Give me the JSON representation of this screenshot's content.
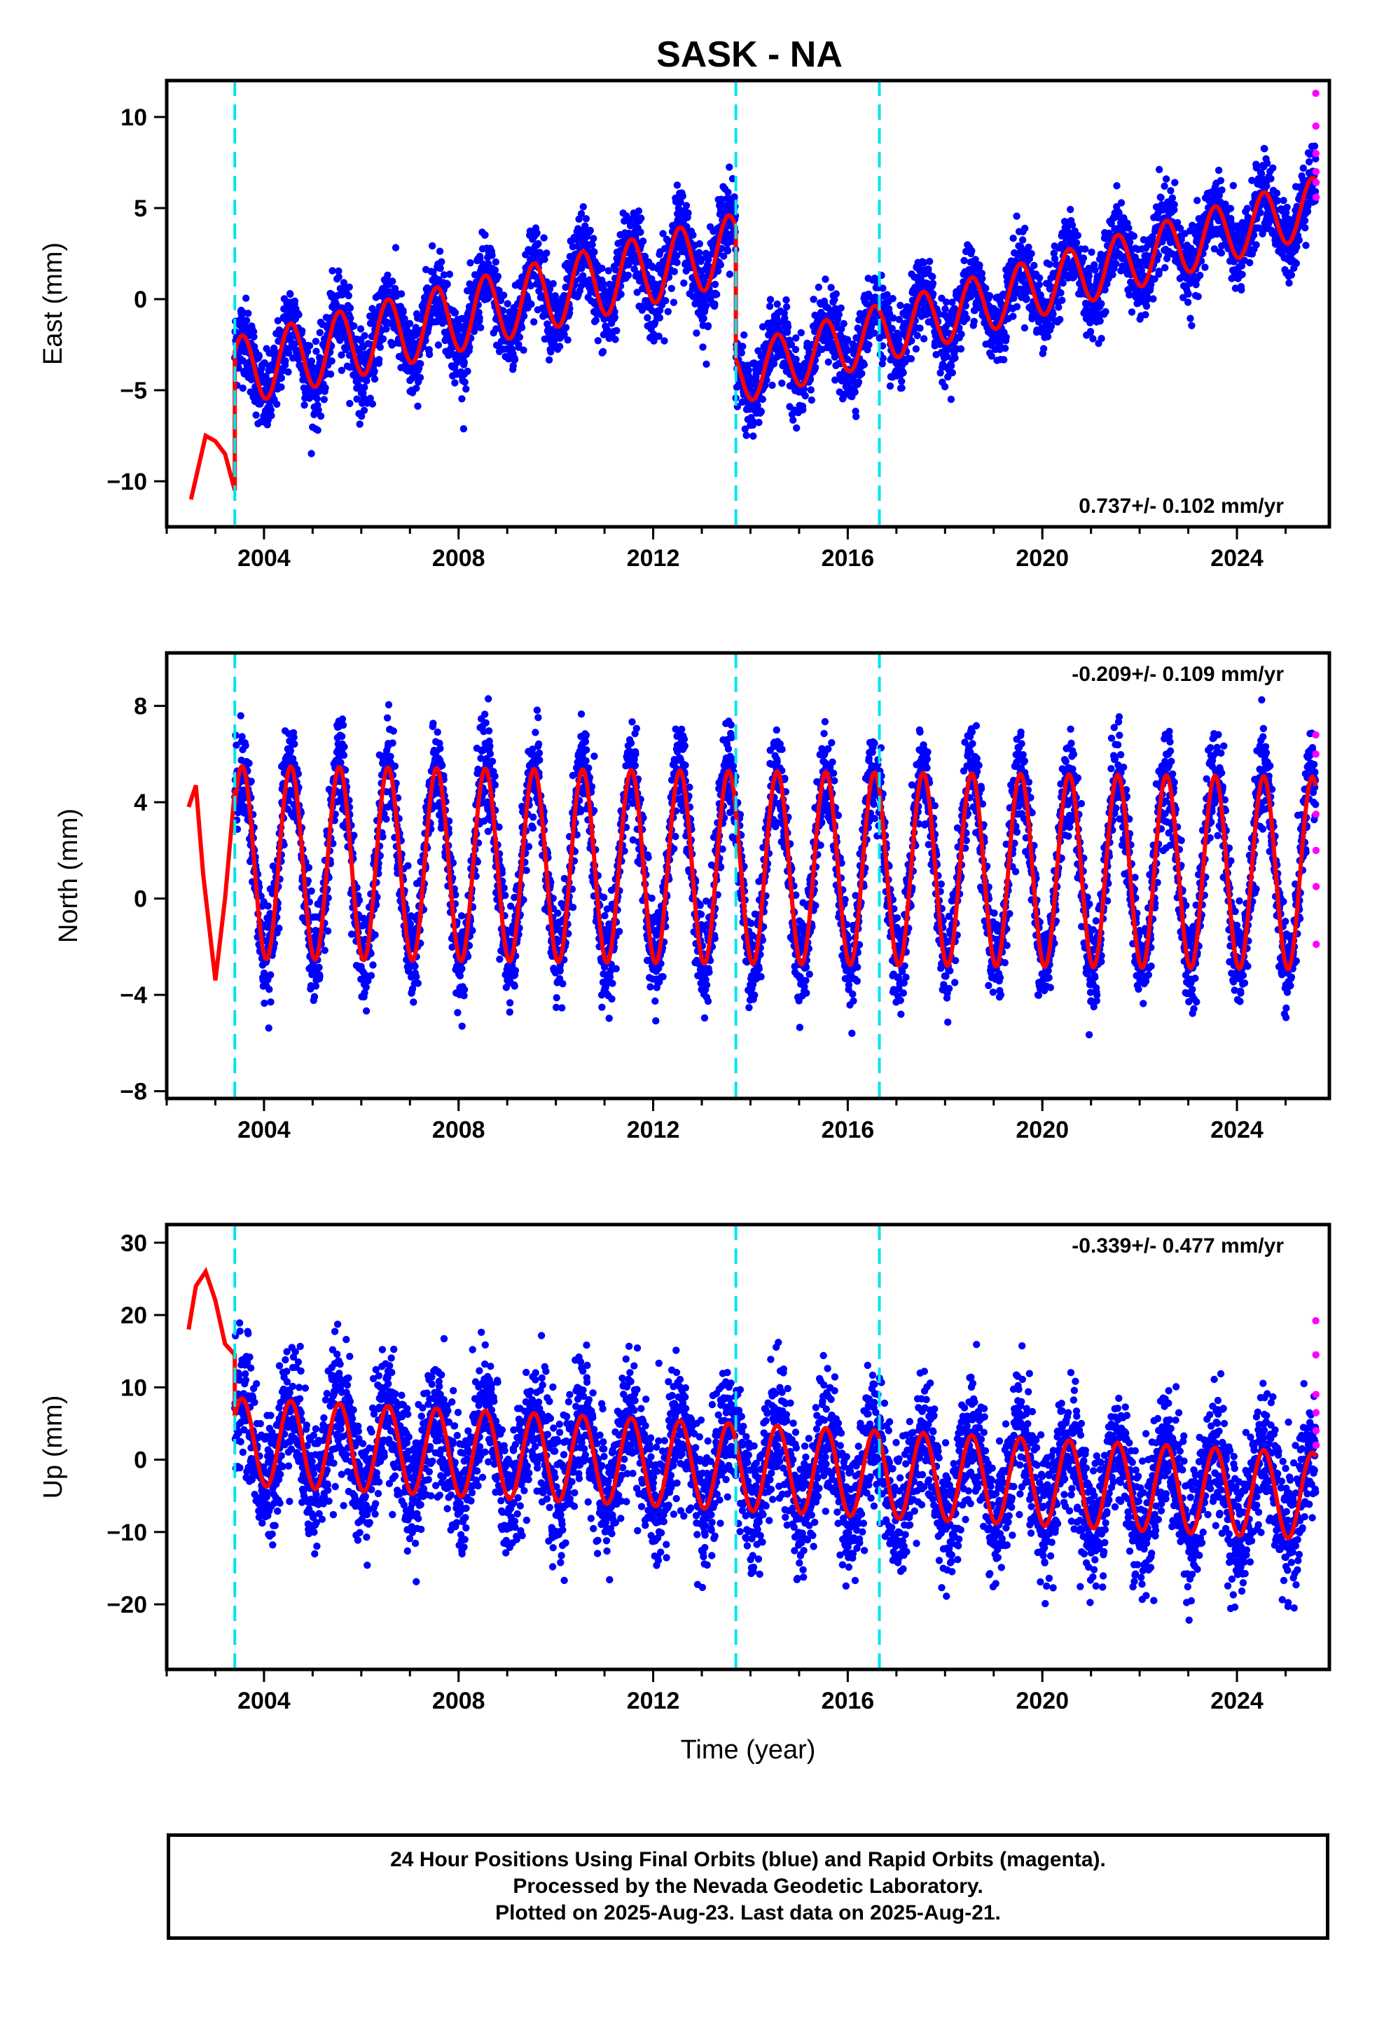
{
  "title": "SASK - NA",
  "xlabel": "Time (year)",
  "footer": {
    "line1": "24 Hour Positions Using Final Orbits (blue) and Rapid Orbits (magenta).",
    "line2": "Processed by the Nevada Geodetic Laboratory.",
    "line3": "Plotted on 2025-Aug-23. Last data on 2025-Aug-21."
  },
  "colors": {
    "final": "#0000ff",
    "rapid": "#ff00ff",
    "model": "#ff0000",
    "step": "#00e5ee"
  },
  "chart_data": [
    {
      "type": "scatter",
      "panel": "east",
      "ylabel": "East (mm)",
      "rate": "0.737+/- 0.102 mm/yr",
      "rate_position": "bottom-right",
      "xlim": [
        2002.0,
        2025.9
      ],
      "ylim": [
        -12.5,
        12.0
      ],
      "yticks": [
        -10,
        -5,
        0,
        5,
        10
      ],
      "xticks": [
        2004,
        2008,
        2012,
        2016,
        2020,
        2024
      ],
      "step_epochs": [
        2003.4,
        2013.7,
        2016.65
      ],
      "series": [
        {
          "segment_start": 2003.4,
          "segment_end": 2013.7,
          "offset_start": -4.0,
          "trend": 0.66,
          "amplitude": 1.9,
          "noise": 1.1
        },
        {
          "segment_start": 2013.7,
          "segment_end": 2025.62,
          "offset_start": -4.2,
          "trend": 0.78,
          "amplitude": 1.6,
          "noise": 1.0
        }
      ],
      "pre_model": {
        "x": [
          2002.5,
          2002.8,
          2003.0,
          2003.2,
          2003.4
        ],
        "y": [
          -11.0,
          -7.5,
          -7.8,
          -8.5,
          -10.5
        ]
      },
      "rapid_y": [
        11.3,
        9.5,
        8.0,
        7.0,
        6.4,
        5.6
      ]
    },
    {
      "type": "scatter",
      "panel": "north",
      "ylabel": "North (mm)",
      "rate": "-0.209+/- 0.109 mm/yr",
      "rate_position": "top-right",
      "xlim": [
        2002.0,
        2025.9
      ],
      "ylim": [
        -8.3,
        10.2
      ],
      "yticks": [
        -8,
        -4,
        0,
        4,
        8
      ],
      "xticks": [
        2004,
        2008,
        2012,
        2016,
        2020,
        2024
      ],
      "step_epochs": [
        2003.4,
        2013.7,
        2016.65
      ],
      "series": [
        {
          "segment_start": 2003.4,
          "segment_end": 2025.62,
          "offset_start": 1.5,
          "trend": -0.02,
          "amplitude": 4.0,
          "noise": 1.0
        }
      ],
      "pre_model": {
        "x": [
          2002.45,
          2002.6,
          2002.75,
          2003.0,
          2003.2,
          2003.4
        ],
        "y": [
          3.8,
          4.7,
          1.0,
          -3.4,
          0.0,
          4.5
        ]
      },
      "rapid_y": [
        6.8,
        6.0,
        3.5,
        2.0,
        0.5,
        -1.9
      ]
    },
    {
      "type": "scatter",
      "panel": "up",
      "ylabel": "Up (mm)",
      "rate": "-0.339+/- 0.477 mm/yr",
      "rate_position": "top-right",
      "xlim": [
        2002.0,
        2025.9
      ],
      "ylim": [
        -29.0,
        32.5
      ],
      "yticks": [
        -20,
        -10,
        0,
        10,
        20,
        30
      ],
      "xticks": [
        2004,
        2008,
        2012,
        2016,
        2020,
        2024
      ],
      "step_epochs": [
        2003.4,
        2013.7,
        2016.65
      ],
      "series": [
        {
          "segment_start": 2003.4,
          "segment_end": 2025.62,
          "offset_start": 2.5,
          "trend": -0.34,
          "amplitude": 6.0,
          "noise": 4.5
        }
      ],
      "pre_model": {
        "x": [
          2002.45,
          2002.6,
          2002.8,
          2003.0,
          2003.2,
          2003.4
        ],
        "y": [
          18.0,
          24.0,
          26.0,
          22.0,
          16.0,
          14.5
        ]
      },
      "rapid_y": [
        19.2,
        14.5,
        9.0,
        6.5,
        4.0,
        2.0
      ]
    }
  ]
}
